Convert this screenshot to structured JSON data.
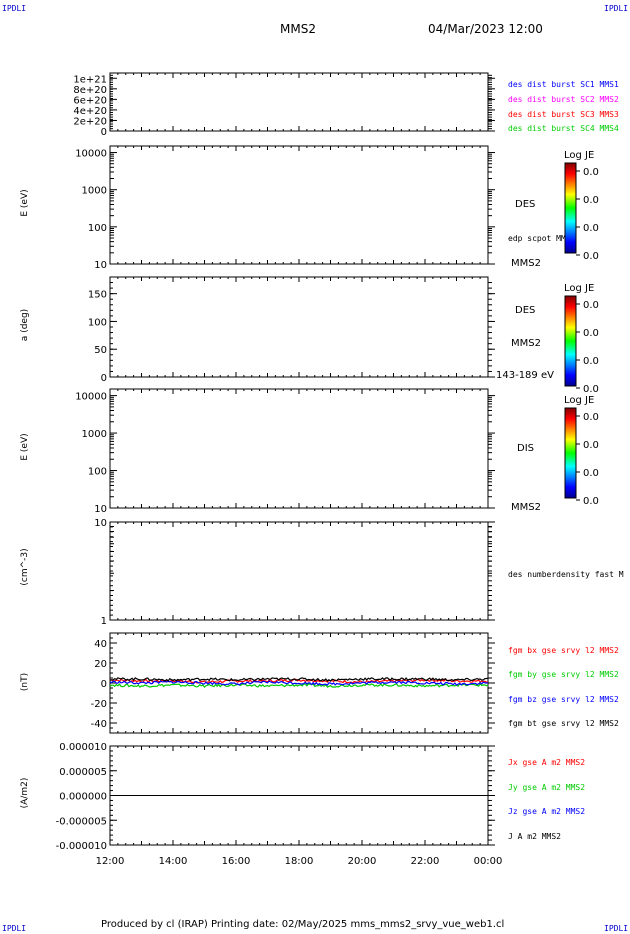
{
  "corners": {
    "tl": "IPDLI",
    "tr": "IPDLI",
    "bl": "IPDLI",
    "br": "IPDLI"
  },
  "header": {
    "spacecraft": "MMS2",
    "datetime": "04/Mar/2023 12:00"
  },
  "footer": "Produced by cl (IRAP)   Printing date: 02/May/2025   mms_mms2_srvy_vue_web1.cl",
  "colors": {
    "mms1": "#0000ff",
    "mms2": "#ff00ff",
    "mms3": "#ff0000",
    "mms4": "#00cc00",
    "bx": "#ff0000",
    "by": "#00cc00",
    "bz": "#0000ff",
    "bt": "#000000"
  },
  "colorbar_label": "Log JE",
  "colorbar_ticks": [
    "0.0",
    "0.0",
    "0.0",
    "0.0"
  ],
  "panel1": {
    "legend": [
      "des dist burst SC1 MMS1",
      "des dist burst SC2 MMS2",
      "des dist burst SC3 MMS3",
      "des dist burst SC4 MMS4"
    ]
  },
  "panel2": {
    "ylabel": "E (eV)",
    "instrument": "DES",
    "extra": "edp scpot MMS2",
    "sc": "MMS2"
  },
  "panel3": {
    "ylabel": "a (deg)",
    "instrument": "DES",
    "sc": "MMS2",
    "range": "143-189 eV"
  },
  "panel4": {
    "ylabel": "E (eV)",
    "instrument": "DIS",
    "sc": "MMS2"
  },
  "panel5": {
    "ylabel": "(cm^-3)",
    "legend": "des numberdensity fast M"
  },
  "panel6": {
    "ylabel": "(nT)",
    "legend": [
      "fgm bx gse srvy l2 MMS2",
      "fgm by gse srvy l2 MMS2",
      "fgm bz gse srvy l2 MMS2",
      "fgm bt gse srvy l2 MMS2"
    ]
  },
  "panel7": {
    "ylabel": "(A/m2)",
    "legend": [
      "Jx gse A m2 MMS2",
      "Jy gse A m2 MMS2",
      "Jz gse A m2 MMS2",
      "J A m2 MMS2"
    ]
  },
  "chart_data": [
    {
      "type": "line",
      "panel": 1,
      "title": "",
      "y_tick_labels": [
        "1e+21",
        "8e+20",
        "6e+20",
        "4e+20",
        "2e+20",
        "0"
      ],
      "ylim": [
        0,
        1.1e+21
      ],
      "series": [
        {
          "name": "des dist burst SC1 MMS1",
          "values": []
        },
        {
          "name": "des dist burst SC2 MMS2",
          "values": []
        },
        {
          "name": "des dist burst SC3 MMS3",
          "values": []
        },
        {
          "name": "des dist burst SC4 MMS4",
          "values": []
        }
      ],
      "reference_line": {
        "y": 0,
        "style": "dashed"
      }
    },
    {
      "type": "heatmap",
      "panel": 2,
      "ylabel": "E (eV)",
      "yscale": "log",
      "ylim": [
        10,
        15000
      ],
      "y_tick_labels": [
        "10000",
        "1000",
        "100",
        "10"
      ],
      "colorbar": "Log JE"
    },
    {
      "type": "heatmap",
      "panel": 3,
      "ylabel": "a (deg)",
      "ylim": [
        0,
        180
      ],
      "y_tick_labels": [
        "150",
        "100",
        "50",
        "0"
      ],
      "colorbar": "Log JE"
    },
    {
      "type": "heatmap",
      "panel": 4,
      "ylabel": "E (eV)",
      "yscale": "log",
      "ylim": [
        10,
        15000
      ],
      "y_tick_labels": [
        "10000",
        "1000",
        "100",
        "10"
      ],
      "colorbar": "Log JE"
    },
    {
      "type": "line",
      "panel": 5,
      "ylabel": "(cm^-3)",
      "yscale": "log",
      "ylim": [
        1,
        10
      ],
      "y_tick_labels": [
        "10",
        "1"
      ],
      "series": [
        {
          "name": "des numberdensity fast M",
          "values": []
        }
      ]
    },
    {
      "type": "line",
      "panel": 6,
      "ylabel": "(nT)",
      "ylim": [
        -50,
        50
      ],
      "y_tick_labels": [
        "40",
        "20",
        "0",
        "-20",
        "-40"
      ],
      "x": [
        "12:00",
        "13:00",
        "14:00",
        "15:00",
        "16:00",
        "17:00",
        "18:00",
        "19:00",
        "20:00",
        "21:00",
        "22:00",
        "23:00",
        "00:00"
      ],
      "series": [
        {
          "name": "fgm bx gse srvy l2 MMS2",
          "values": [
            3,
            2,
            2,
            1,
            2,
            2,
            3,
            2,
            1,
            2,
            3,
            2,
            2
          ]
        },
        {
          "name": "fgm by gse srvy l2 MMS2",
          "values": [
            -2,
            -3,
            -2,
            -3,
            -2,
            -3,
            -2,
            -3,
            -2,
            -2,
            -3,
            -2,
            -2
          ]
        },
        {
          "name": "fgm bz gse srvy l2 MMS2",
          "values": [
            1,
            0,
            1,
            0,
            -1,
            1,
            0,
            -1,
            0,
            1,
            0,
            -1,
            0
          ]
        },
        {
          "name": "fgm bt gse srvy l2 MMS2",
          "values": [
            4,
            4,
            3,
            4,
            3,
            4,
            4,
            3,
            4,
            4,
            4,
            3,
            4
          ]
        }
      ]
    },
    {
      "type": "line",
      "panel": 7,
      "ylabel": "(A/m2)",
      "ylim": [
        -1e-05,
        1e-05
      ],
      "y_tick_labels": [
        "0.000010",
        "0.000005",
        "0.000000",
        "-0.000005",
        "-0.000010"
      ],
      "series": [
        {
          "name": "Jx gse A m2 MMS2",
          "values": []
        },
        {
          "name": "Jy gse A m2 MMS2",
          "values": []
        },
        {
          "name": "Jz gse A m2 MMS2",
          "values": []
        },
        {
          "name": "J A m2 MMS2",
          "values": [
            0,
            0,
            0,
            0,
            0,
            0,
            0,
            0,
            0,
            0,
            0,
            0,
            0
          ]
        }
      ]
    },
    {
      "type": "axis",
      "x_tick_labels": [
        "12:00",
        "14:00",
        "16:00",
        "18:00",
        "20:00",
        "22:00",
        "00:00"
      ]
    }
  ]
}
